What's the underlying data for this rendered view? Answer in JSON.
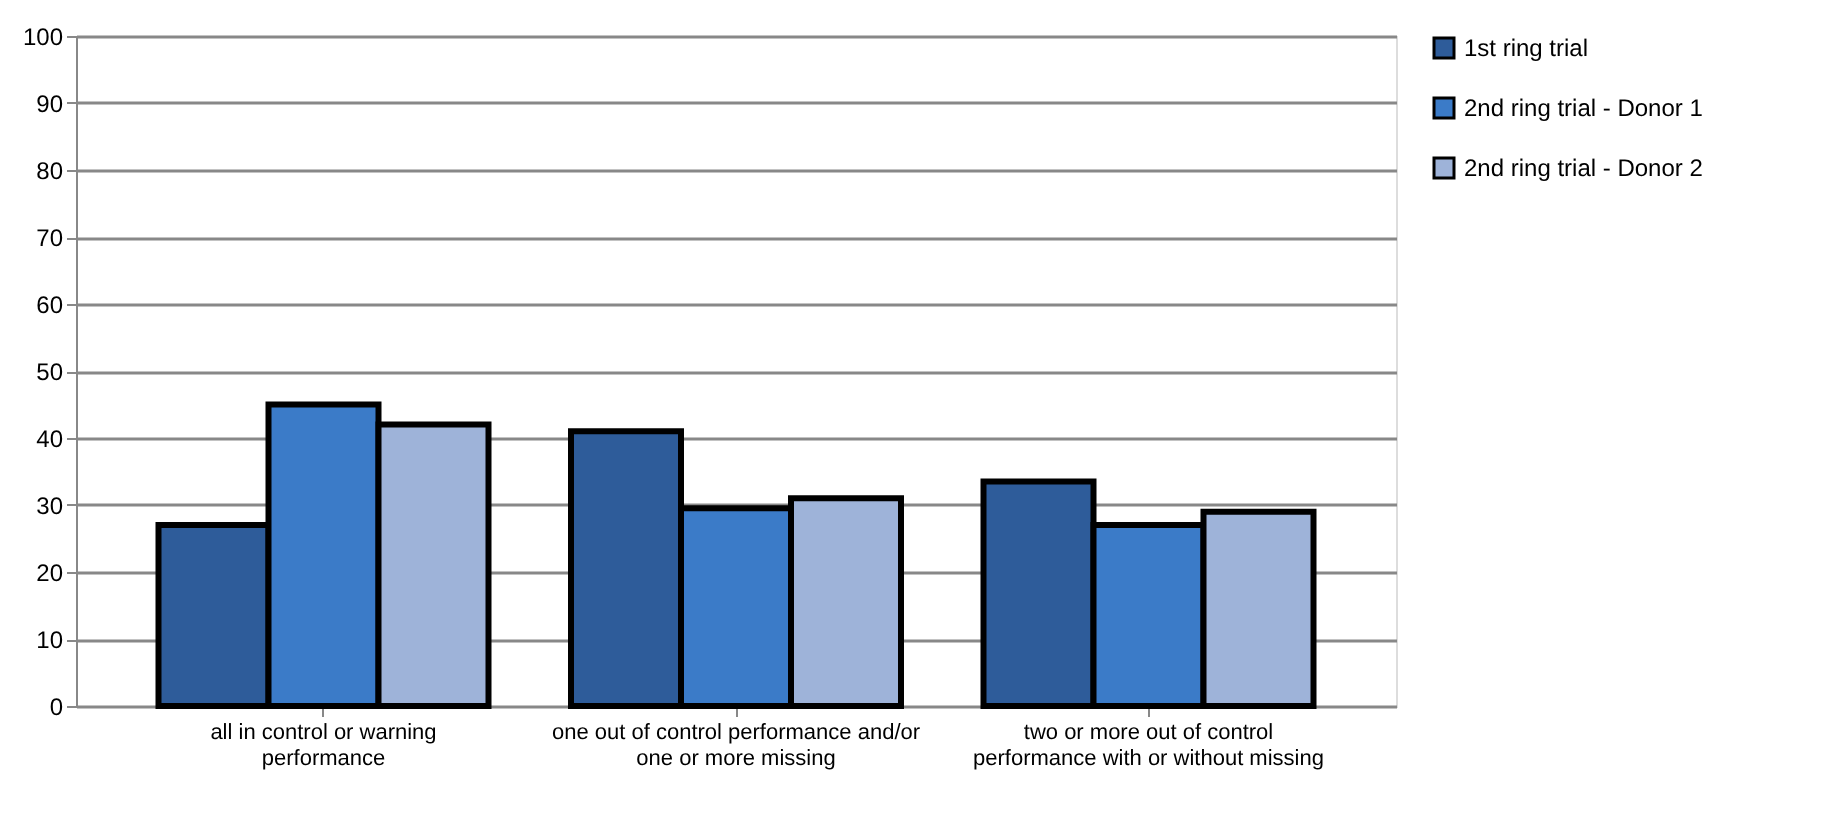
{
  "chart_data": {
    "type": "bar",
    "categories": [
      "all in control or warning\nperformance",
      "one out of control performance and/or\none or more missing",
      "two or more out of control\nperformance with or without missing"
    ],
    "series": [
      {
        "name": "1st ring trial",
        "color": "#2e5c9a",
        "values": [
          27,
          41,
          33.5
        ]
      },
      {
        "name": "2nd ring trial  - Donor 1",
        "color": "#3b7bc8",
        "values": [
          45,
          29.5,
          27
        ]
      },
      {
        "name": "2nd ring trial  - Donor 2",
        "color": "#9eb3d9",
        "values": [
          42,
          31,
          29
        ]
      }
    ],
    "ylim": [
      0,
      100
    ],
    "yticks": [
      0,
      10,
      20,
      30,
      40,
      50,
      60,
      70,
      80,
      90,
      100
    ],
    "grid": "y",
    "legend": "right"
  }
}
